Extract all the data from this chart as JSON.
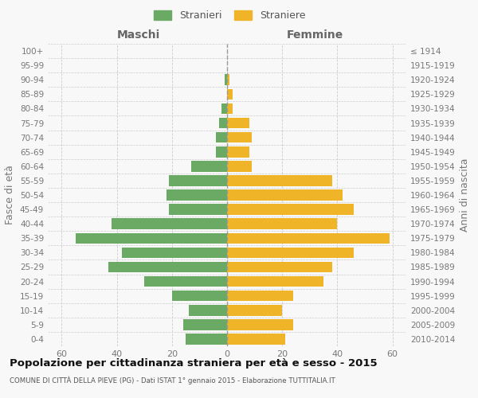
{
  "age_groups": [
    "0-4",
    "5-9",
    "10-14",
    "15-19",
    "20-24",
    "25-29",
    "30-34",
    "35-39",
    "40-44",
    "45-49",
    "50-54",
    "55-59",
    "60-64",
    "65-69",
    "70-74",
    "75-79",
    "80-84",
    "85-89",
    "90-94",
    "95-99",
    "100+"
  ],
  "birth_years": [
    "2010-2014",
    "2005-2009",
    "2000-2004",
    "1995-1999",
    "1990-1994",
    "1985-1989",
    "1980-1984",
    "1975-1979",
    "1970-1974",
    "1965-1969",
    "1960-1964",
    "1955-1959",
    "1950-1954",
    "1945-1949",
    "1940-1944",
    "1935-1939",
    "1930-1934",
    "1925-1929",
    "1920-1924",
    "1915-1919",
    "≤ 1914"
  ],
  "maschi": [
    15,
    16,
    14,
    20,
    30,
    43,
    38,
    55,
    42,
    21,
    22,
    21,
    13,
    4,
    4,
    3,
    2,
    0,
    1,
    0,
    0
  ],
  "femmine": [
    21,
    24,
    20,
    24,
    35,
    38,
    46,
    59,
    40,
    46,
    42,
    38,
    9,
    8,
    9,
    8,
    2,
    2,
    1,
    0,
    0
  ],
  "male_color": "#6aaa64",
  "female_color": "#f0b429",
  "bg_color": "#f8f8f8",
  "grid_color": "#cccccc",
  "bar_height": 0.75,
  "xlim": 65,
  "title": "Popolazione per cittadinanza straniera per età e sesso - 2015",
  "subtitle": "COMUNE DI CITTÀ DELLA PIEVE (PG) - Dati ISTAT 1° gennaio 2015 - Elaborazione TUTTITALIA.IT",
  "maschi_label": "Maschi",
  "femmine_label": "Femmine",
  "stranieri_label": "Stranieri",
  "straniere_label": "Straniere",
  "ylabel_left": "Fasce di età",
  "ylabel_right": "Anni di nascita"
}
